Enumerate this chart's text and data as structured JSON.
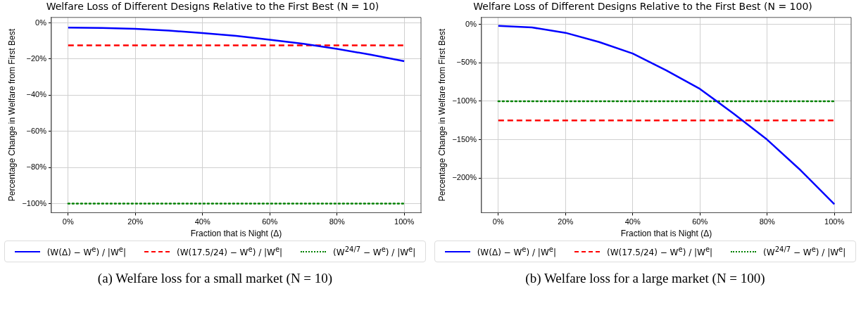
{
  "chart_data": [
    {
      "type": "line",
      "title": "Welfare Loss of Different Designs Relative to the First Best (N = 10)",
      "xlabel": "Fraction that is Night (Δ)",
      "ylabel": "Percentage Change in Welfare from First Best",
      "annotations": [
        "(a) Welfare loss for a small market (N = 10)"
      ],
      "x": [
        0,
        10,
        20,
        30,
        40,
        50,
        60,
        70,
        80,
        90,
        100
      ],
      "series": [
        {
          "name": "(W(Δ) − W$^{e}$) / |W$^{e}$|",
          "color": "#0000ff",
          "line_style": "solid",
          "values": [
            -2.6,
            -2.8,
            -3.3,
            -4.3,
            -5.6,
            -7.2,
            -9.3,
            -11.6,
            -14.4,
            -17.6,
            -21.2
          ]
        },
        {
          "name": "(W(17.5/24) − W$^{e}$) / |W$^{e}$|",
          "color": "#ff0000",
          "line_style": "dashed",
          "values": [
            -12.4,
            -12.4,
            -12.4,
            -12.4,
            -12.4,
            -12.4,
            -12.4,
            -12.4,
            -12.4,
            -12.4,
            -12.4
          ]
        },
        {
          "name": "(W$^{24/7}$ − W$^{e}$) / |W$^{e}$|",
          "color": "#008000",
          "line_style": "dotted",
          "values": [
            -100,
            -100,
            -100,
            -100,
            -100,
            -100,
            -100,
            -100,
            -100,
            -100,
            -100
          ]
        }
      ],
      "xlim": [
        -5,
        105
      ],
      "xticks": [
        {
          "value": 0,
          "label": "0%"
        },
        {
          "value": 20,
          "label": "20%"
        },
        {
          "value": 40,
          "label": "40%"
        },
        {
          "value": 60,
          "label": "60%"
        },
        {
          "value": 80,
          "label": "80%"
        },
        {
          "value": 100,
          "label": "100%"
        }
      ],
      "ylim": [
        -105,
        3
      ],
      "yticks": [
        {
          "value": -100,
          "label": "−100%"
        },
        {
          "value": -80,
          "label": "−80%"
        },
        {
          "value": -60,
          "label": "−60%"
        },
        {
          "value": -40,
          "label": "−40%"
        },
        {
          "value": -20,
          "label": "−20%"
        },
        {
          "value": 0,
          "label": "0%"
        }
      ],
      "grid": true,
      "legend": "bottom",
      "marker": "none"
    },
    {
      "type": "line",
      "title": "Welfare Loss of Different Designs Relative to the First Best (N = 100)",
      "xlabel": "Fraction that is Night (Δ)",
      "ylabel": "Percentage Change in Welfare from First Best",
      "annotations": [
        "(b) Welfare loss for a large market (N = 100)"
      ],
      "x": [
        0,
        10,
        20,
        30,
        40,
        50,
        60,
        70,
        80,
        90,
        100
      ],
      "series": [
        {
          "name": "(W(Δ) − W$^{e}$) / |W$^{e}$|",
          "color": "#0000ff",
          "line_style": "solid",
          "values": [
            -2,
            -4,
            -11,
            -23,
            -38,
            -60,
            -84,
            -116,
            -150,
            -190,
            -234
          ]
        },
        {
          "name": "(W(17.5/24) − W$^{e}$) / |W$^{e}$|",
          "color": "#ff0000",
          "line_style": "dashed",
          "values": [
            -125,
            -125,
            -125,
            -125,
            -125,
            -125,
            -125,
            -125,
            -125,
            -125,
            -125
          ]
        },
        {
          "name": "(W$^{24/7}$ − W$^{e}$) / |W$^{e}$|",
          "color": "#008000",
          "line_style": "dotted",
          "values": [
            -100,
            -100,
            -100,
            -100,
            -100,
            -100,
            -100,
            -100,
            -100,
            -100,
            -100
          ]
        }
      ],
      "xlim": [
        -5,
        105
      ],
      "xticks": [
        {
          "value": 0,
          "label": "0%"
        },
        {
          "value": 20,
          "label": "20%"
        },
        {
          "value": 40,
          "label": "40%"
        },
        {
          "value": 60,
          "label": "60%"
        },
        {
          "value": 80,
          "label": "80%"
        },
        {
          "value": 100,
          "label": "100%"
        }
      ],
      "ylim": [
        -245,
        9
      ],
      "yticks": [
        {
          "value": -200,
          "label": "−200%"
        },
        {
          "value": -150,
          "label": "−150%"
        },
        {
          "value": -100,
          "label": "−100%"
        },
        {
          "value": -50,
          "label": "−50%"
        },
        {
          "value": 0,
          "label": "0%"
        }
      ],
      "grid": true,
      "legend": "bottom",
      "marker": "none"
    }
  ]
}
